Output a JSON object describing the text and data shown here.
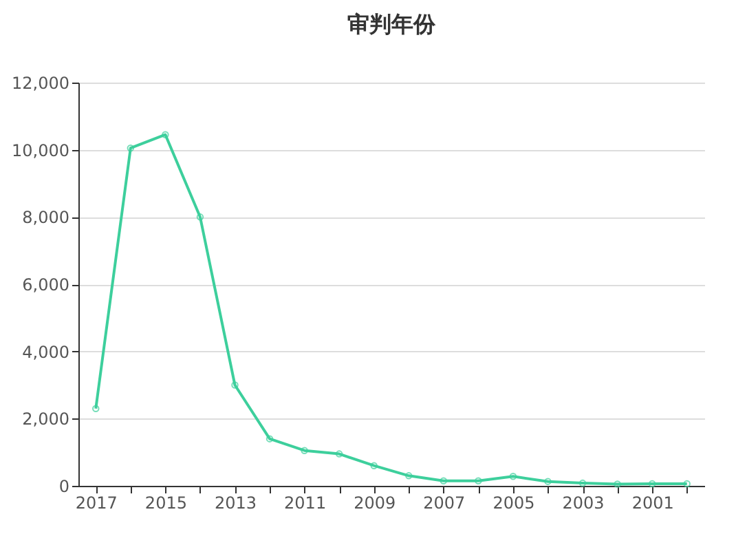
{
  "chart_data": {
    "type": "line",
    "title": "审判年份",
    "categories": [
      "2017",
      null,
      "2015",
      null,
      "2013",
      null,
      "2011",
      null,
      "2009",
      null,
      "2007",
      null,
      "2005",
      null,
      "2003",
      null,
      "2001",
      null
    ],
    "series": [
      {
        "color": "#3dcf9c",
        "values": [
          2300,
          10050,
          10450,
          8000,
          3000,
          1400,
          1050,
          950,
          600,
          300,
          150,
          150,
          280,
          130,
          80,
          50,
          60,
          60
        ]
      }
    ],
    "ylim": [
      0,
      12000
    ],
    "yticks": [
      0,
      {
        "value": 2000,
        "label": "2,000"
      },
      {
        "value": 4000,
        "label": "4,000"
      },
      {
        "value": 6000,
        "label": "6,000"
      },
      {
        "value": 8000,
        "label": "8,000"
      },
      {
        "value": 10000,
        "label": "10,000"
      },
      {
        "value": 12000,
        "label": "12,000"
      }
    ],
    "grid": "y",
    "marker": "circle"
  }
}
